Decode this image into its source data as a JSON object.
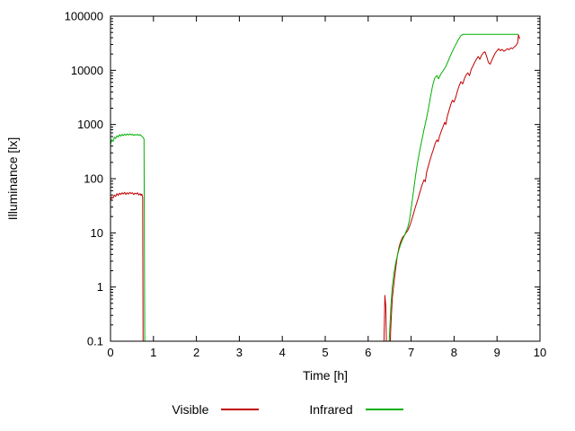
{
  "chart_data": {
    "type": "line",
    "title": "",
    "xlabel": "Time [h]",
    "ylabel": "Illuminance [lx]",
    "xlim": [
      0,
      10
    ],
    "ylim": [
      0.1,
      100000
    ],
    "yscale": "log",
    "grid": false,
    "legend_position": "bottom-center",
    "xticks": [
      0,
      1,
      2,
      3,
      4,
      5,
      6,
      7,
      8,
      9,
      10
    ],
    "ytick_labels": [
      "0.1",
      "1",
      "10",
      "100",
      "1000",
      "10000",
      "100000"
    ],
    "series": [
      {
        "name": "Visible",
        "color": "#c00000",
        "segments": [
          [
            [
              0.0,
              38
            ],
            [
              0.03,
              46
            ],
            [
              0.06,
              44
            ],
            [
              0.09,
              50
            ],
            [
              0.12,
              47
            ],
            [
              0.15,
              53
            ],
            [
              0.18,
              49
            ],
            [
              0.21,
              54
            ],
            [
              0.24,
              51
            ],
            [
              0.27,
              55
            ],
            [
              0.3,
              52
            ],
            [
              0.33,
              56
            ],
            [
              0.36,
              51
            ],
            [
              0.39,
              55
            ],
            [
              0.42,
              52
            ],
            [
              0.45,
              56
            ],
            [
              0.48,
              53
            ],
            [
              0.51,
              55
            ],
            [
              0.54,
              51
            ],
            [
              0.57,
              54
            ],
            [
              0.6,
              52
            ],
            [
              0.63,
              55
            ],
            [
              0.66,
              50
            ],
            [
              0.69,
              53
            ],
            [
              0.71,
              49
            ],
            [
              0.73,
              52
            ],
            [
              0.75,
              45
            ],
            [
              0.76,
              0.05
            ]
          ],
          [
            [
              6.36,
              0.05
            ],
            [
              6.38,
              0.3
            ],
            [
              6.39,
              0.7
            ],
            [
              6.41,
              0.45
            ],
            [
              6.43,
              0.05
            ],
            [
              6.5,
              0.05
            ],
            [
              6.53,
              0.2
            ],
            [
              6.56,
              0.6
            ],
            [
              6.6,
              1.2
            ],
            [
              6.64,
              2.2
            ],
            [
              6.68,
              3.8
            ],
            [
              6.72,
              5.5
            ],
            [
              6.76,
              7
            ],
            [
              6.8,
              8.2
            ],
            [
              6.84,
              9
            ],
            [
              6.88,
              10
            ],
            [
              6.92,
              11
            ],
            [
              6.96,
              13
            ],
            [
              7.0,
              16
            ],
            [
              7.05,
              22
            ],
            [
              7.1,
              30
            ],
            [
              7.15,
              40
            ],
            [
              7.2,
              55
            ],
            [
              7.25,
              75
            ],
            [
              7.3,
              95
            ],
            [
              7.33,
              88
            ],
            [
              7.36,
              130
            ],
            [
              7.4,
              170
            ],
            [
              7.44,
              220
            ],
            [
              7.48,
              280
            ],
            [
              7.52,
              350
            ],
            [
              7.56,
              450
            ],
            [
              7.6,
              520
            ],
            [
              7.63,
              480
            ],
            [
              7.66,
              600
            ],
            [
              7.7,
              750
            ],
            [
              7.74,
              900
            ],
            [
              7.78,
              1100
            ],
            [
              7.81,
              1000
            ],
            [
              7.84,
              1400
            ],
            [
              7.88,
              1800
            ],
            [
              7.92,
              2300
            ],
            [
              7.96,
              2800
            ],
            [
              8.0,
              2600
            ],
            [
              8.04,
              3200
            ],
            [
              8.08,
              4200
            ],
            [
              8.12,
              5200
            ],
            [
              8.16,
              6200
            ],
            [
              8.2,
              5600
            ],
            [
              8.24,
              7000
            ],
            [
              8.28,
              8200
            ],
            [
              8.32,
              9000
            ],
            [
              8.36,
              8000
            ],
            [
              8.4,
              10500
            ],
            [
              8.44,
              12000
            ],
            [
              8.48,
              14000
            ],
            [
              8.52,
              16000
            ],
            [
              8.56,
              18000
            ],
            [
              8.6,
              16000
            ],
            [
              8.64,
              19000
            ],
            [
              8.68,
              21000
            ],
            [
              8.72,
              22000
            ],
            [
              8.76,
              18000
            ],
            [
              8.8,
              14000
            ],
            [
              8.84,
              13000
            ],
            [
              8.88,
              15500
            ],
            [
              8.92,
              18000
            ],
            [
              8.96,
              21000
            ],
            [
              9.0,
              23000
            ],
            [
              9.04,
              25000
            ],
            [
              9.08,
              23000
            ],
            [
              9.12,
              24500
            ],
            [
              9.16,
              22500
            ],
            [
              9.2,
              23500
            ],
            [
              9.24,
              25000
            ],
            [
              9.28,
              24000
            ],
            [
              9.32,
              26000
            ],
            [
              9.36,
              25000
            ],
            [
              9.4,
              27000
            ],
            [
              9.44,
              28500
            ],
            [
              9.48,
              32000
            ],
            [
              9.5,
              45000
            ],
            [
              9.53,
              38000
            ]
          ]
        ]
      },
      {
        "name": "Infrared",
        "color": "#00b000",
        "segments": [
          [
            [
              0.0,
              430
            ],
            [
              0.03,
              520
            ],
            [
              0.06,
              490
            ],
            [
              0.09,
              580
            ],
            [
              0.12,
              550
            ],
            [
              0.15,
              620
            ],
            [
              0.18,
              590
            ],
            [
              0.21,
              650
            ],
            [
              0.24,
              610
            ],
            [
              0.27,
              660
            ],
            [
              0.3,
              625
            ],
            [
              0.33,
              665
            ],
            [
              0.36,
              635
            ],
            [
              0.39,
              670
            ],
            [
              0.42,
              640
            ],
            [
              0.45,
              668
            ],
            [
              0.48,
              645
            ],
            [
              0.51,
              662
            ],
            [
              0.54,
              628
            ],
            [
              0.57,
              655
            ],
            [
              0.6,
              640
            ],
            [
              0.63,
              660
            ],
            [
              0.66,
              632
            ],
            [
              0.69,
              650
            ],
            [
              0.72,
              615
            ],
            [
              0.75,
              590
            ],
            [
              0.78,
              540
            ],
            [
              0.8,
              0.05
            ]
          ],
          [
            [
              6.47,
              0.05
            ],
            [
              6.5,
              0.15
            ],
            [
              6.53,
              0.45
            ],
            [
              6.56,
              1.0
            ],
            [
              6.6,
              1.8
            ],
            [
              6.64,
              2.8
            ],
            [
              6.68,
              3.8
            ],
            [
              6.72,
              5.0
            ],
            [
              6.76,
              6.2
            ],
            [
              6.8,
              7.5
            ],
            [
              6.84,
              8.8
            ],
            [
              6.88,
              10.5
            ],
            [
              6.92,
              12.5
            ],
            [
              6.96,
              17
            ],
            [
              7.0,
              28
            ],
            [
              7.05,
              55
            ],
            [
              7.1,
              110
            ],
            [
              7.15,
              200
            ],
            [
              7.2,
              330
            ],
            [
              7.25,
              520
            ],
            [
              7.3,
              800
            ],
            [
              7.35,
              1200
            ],
            [
              7.4,
              1900
            ],
            [
              7.45,
              3200
            ],
            [
              7.5,
              5200
            ],
            [
              7.55,
              7200
            ],
            [
              7.6,
              8000
            ],
            [
              7.64,
              7000
            ],
            [
              7.68,
              8200
            ],
            [
              7.72,
              9200
            ],
            [
              7.76,
              10200
            ],
            [
              7.8,
              11500
            ],
            [
              7.85,
              14000
            ],
            [
              7.9,
              17500
            ],
            [
              7.95,
              21500
            ],
            [
              8.0,
              26000
            ],
            [
              8.05,
              31000
            ],
            [
              8.1,
              37000
            ],
            [
              8.15,
              43000
            ],
            [
              8.2,
              46000
            ],
            [
              8.4,
              46000
            ],
            [
              8.6,
              46000
            ],
            [
              8.8,
              46000
            ],
            [
              9.0,
              46000
            ],
            [
              9.2,
              46000
            ],
            [
              9.4,
              46000
            ],
            [
              9.5,
              46000
            ]
          ]
        ]
      }
    ]
  }
}
